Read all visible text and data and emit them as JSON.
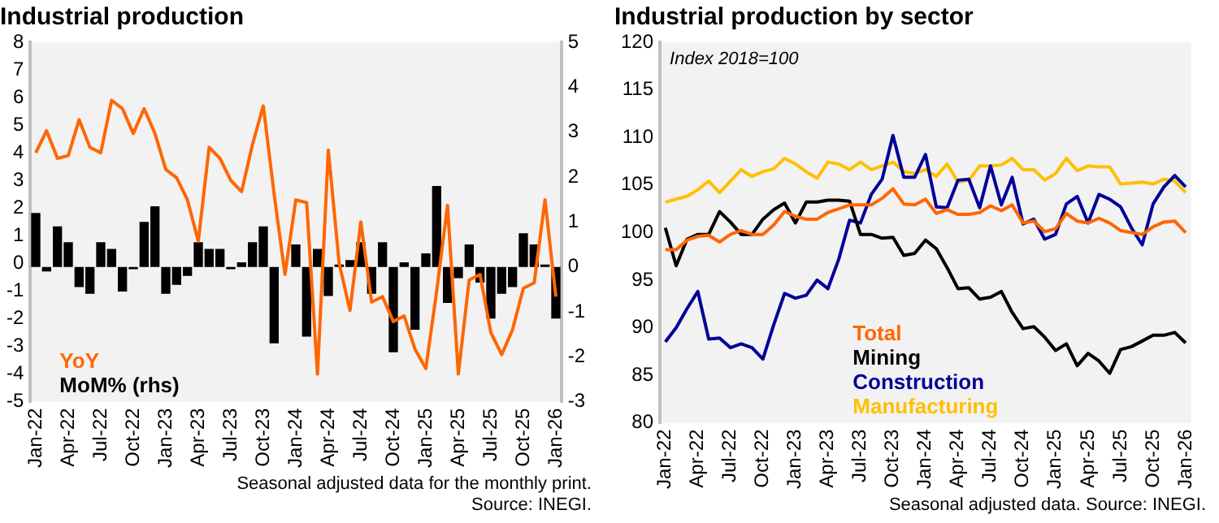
{
  "chart_data": [
    {
      "type": "line",
      "title": "Industrial production",
      "categories": [
        "Jan-22",
        null,
        null,
        "Apr-22",
        null,
        null,
        "Jul-22",
        null,
        null,
        "Oct-22",
        null,
        null,
        "Jan-23",
        null,
        null,
        "Apr-23",
        null,
        null,
        "Jul-23",
        null,
        null,
        "Oct-23",
        null,
        null,
        "Jan-24",
        null,
        null,
        "Apr-24",
        null,
        null,
        "Jul-24",
        null,
        null,
        "Oct-24",
        null,
        null,
        "Jan-25",
        null,
        null,
        "Apr-25",
        null,
        null,
        "Jul-25",
        null,
        null,
        "Oct-25",
        null,
        null,
        "Jan-26"
      ],
      "series": [
        {
          "name": "YoY",
          "type": "line",
          "color": "#ff6600",
          "values": [
            4.0,
            4.8,
            3.8,
            3.9,
            5.2,
            4.2,
            4.0,
            5.9,
            5.6,
            4.7,
            5.6,
            4.7,
            3.4,
            3.1,
            2.3,
            0.8,
            4.2,
            3.8,
            3.0,
            2.6,
            4.3,
            5.7,
            2.5,
            -0.4,
            2.3,
            2.2,
            -4.0,
            4.1,
            0.0,
            -1.7,
            1.5,
            -1.4,
            -1.2,
            -2.1,
            -1.9,
            -3.1,
            -3.8,
            -1.0,
            2.1,
            -4.0,
            -0.6,
            -0.4,
            -2.5,
            -3.3,
            -2.4,
            -0.9,
            -0.7,
            2.3,
            -1.2
          ]
        },
        {
          "name": "MoM% (rhs)",
          "type": "bar",
          "axis": "y2",
          "color": "#000000",
          "values": [
            1.2,
            -0.1,
            0.9,
            0.55,
            -0.45,
            -0.6,
            0.55,
            0.4,
            -0.55,
            -0.05,
            1.0,
            1.35,
            -0.6,
            -0.4,
            -0.2,
            0.55,
            0.4,
            0.4,
            -0.05,
            0.1,
            0.55,
            0.9,
            -1.7,
            null,
            0.5,
            -1.55,
            0.4,
            -0.65,
            0.05,
            0.15,
            0.55,
            -0.6,
            0.55,
            -1.9,
            0.1,
            -1.4,
            0.3,
            1.8,
            -0.8,
            -0.25,
            0.5,
            -0.35,
            -1.15,
            -0.6,
            -0.45,
            0.75,
            0.5,
            0.05,
            -1.15
          ]
        }
      ],
      "ylim": [
        -5,
        8
      ],
      "yticks": [
        -5,
        -4,
        -3,
        -2,
        -1,
        0,
        1,
        2,
        3,
        4,
        5,
        6,
        7,
        8
      ],
      "y2lim": [
        -3,
        5
      ],
      "y2ticks": [
        -3,
        -2,
        -1,
        0,
        1,
        2,
        3,
        4,
        5
      ],
      "grid": false,
      "legend": "bottom left",
      "annotations": [
        "Seasonal adjusted data for the monthly print.",
        "Source: INEGI."
      ]
    },
    {
      "type": "line",
      "title": "Industrial production by sector",
      "subtitle": "Index 2018=100",
      "categories": [
        "Jan-22",
        null,
        null,
        "Apr-22",
        null,
        null,
        "Jul-22",
        null,
        null,
        "Oct-22",
        null,
        null,
        "Jan-23",
        null,
        null,
        "Apr-23",
        null,
        null,
        "Jul-23",
        null,
        null,
        "Oct-23",
        null,
        null,
        "Jan-24",
        null,
        null,
        "Apr-24",
        null,
        null,
        "Jul-24",
        null,
        null,
        "Oct-24",
        null,
        null,
        "Jan-25",
        null,
        null,
        "Apr-25",
        null,
        null,
        "Jul-25",
        null,
        null,
        "Oct-25",
        null,
        null,
        "Jan-26"
      ],
      "series": [
        {
          "name": "Total",
          "color": "#ff6600",
          "values": [
            98.2,
            98.2,
            99.2,
            99.6,
            99.7,
            99.0,
            99.8,
            100.2,
            99.8,
            99.8,
            100.8,
            102.2,
            101.7,
            101.4,
            101.4,
            102.1,
            102.5,
            102.9,
            102.9,
            102.9,
            103.6,
            104.6,
            103.0,
            102.9,
            103.5,
            102.0,
            102.4,
            101.9,
            101.9,
            102.1,
            102.8,
            102.3,
            102.9,
            101.0,
            101.2,
            100.1,
            100.4,
            102.0,
            101.2,
            101.0,
            101.5,
            101.0,
            100.2,
            100.0,
            99.8,
            100.6,
            101.1,
            101.2,
            100.0
          ]
        },
        {
          "name": "Mining",
          "color": "#000000",
          "values": [
            100.5,
            96.5,
            99.3,
            99.8,
            99.8,
            102.2,
            101.1,
            99.8,
            99.8,
            101.4,
            102.4,
            103.1,
            101.0,
            103.2,
            103.2,
            103.4,
            103.4,
            103.3,
            99.8,
            99.8,
            99.4,
            99.5,
            97.6,
            97.8,
            99.2,
            98.3,
            96.3,
            94.1,
            94.2,
            93.0,
            93.2,
            93.8,
            91.6,
            89.9,
            90.1,
            89.0,
            87.6,
            88.3,
            86.0,
            87.3,
            86.5,
            85.2,
            87.7,
            88.0,
            88.6,
            89.2,
            89.2,
            89.5,
            88.4
          ]
        },
        {
          "name": "Construction",
          "color": "#000099",
          "values": [
            88.5,
            90.0,
            92.0,
            93.8,
            88.8,
            88.9,
            87.9,
            88.3,
            87.9,
            86.7,
            90.3,
            93.6,
            93.1,
            93.4,
            95.0,
            94.1,
            97.2,
            101.3,
            101.0,
            104.0,
            105.6,
            110.2,
            105.8,
            105.8,
            108.2,
            102.7,
            102.6,
            105.5,
            105.6,
            102.6,
            107.0,
            102.9,
            105.8,
            100.9,
            101.4,
            99.3,
            99.8,
            103.0,
            103.8,
            101.0,
            104.0,
            103.5,
            102.7,
            100.5,
            98.7,
            103.0,
            104.8,
            106.0,
            104.8
          ]
        },
        {
          "name": "Manufacturing",
          "color": "#ffc000",
          "values": [
            103.2,
            103.5,
            103.8,
            104.5,
            105.4,
            104.2,
            105.4,
            106.6,
            105.9,
            106.4,
            106.7,
            107.8,
            107.2,
            106.4,
            105.7,
            107.4,
            107.2,
            106.6,
            107.4,
            106.6,
            107.0,
            107.4,
            106.4,
            106.2,
            106.6,
            105.9,
            107.2,
            105.3,
            105.5,
            107.0,
            107.0,
            107.1,
            107.8,
            106.6,
            106.6,
            105.5,
            106.2,
            107.8,
            106.5,
            107.0,
            106.9,
            106.9,
            105.1,
            105.2,
            105.3,
            105.1,
            105.6,
            105.4,
            104.2
          ]
        }
      ],
      "ylim": [
        80,
        120
      ],
      "yticks": [
        80,
        85,
        90,
        95,
        100,
        105,
        110,
        115,
        120
      ],
      "grid": false,
      "legend": "bottom",
      "annotations": [
        "Seasonal adjusted data. Source: INEGI."
      ]
    }
  ]
}
